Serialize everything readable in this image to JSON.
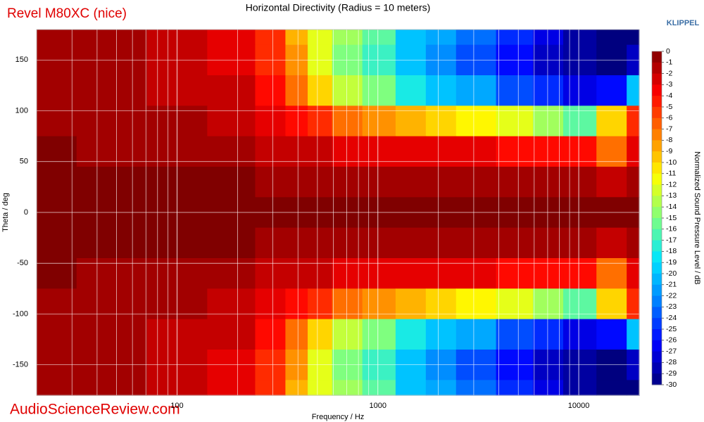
{
  "chart_data": {
    "type": "heatmap",
    "brand": "Revel M80XC (nice)",
    "title": "Horizontal Directivity (Radius = 10 meters)",
    "logo": "KLIPPEL",
    "watermark": "AudioScienceReview.com",
    "x_label": "Frequency / Hz",
    "y_label": "Theta / deg",
    "x": [
      20,
      50,
      100,
      200,
      300,
      400,
      500,
      700,
      1000,
      1500,
      2000,
      3000,
      5000,
      7000,
      10000,
      15000,
      20000
    ],
    "y": [
      180,
      150,
      120,
      90,
      60,
      30,
      0,
      -30,
      -60,
      -90,
      -120,
      -150,
      -180
    ],
    "z": [
      [
        -1,
        -1,
        -2,
        -3,
        -5,
        -9,
        -12,
        -14,
        -16,
        -20,
        -21,
        -23,
        -25,
        -27,
        -29,
        -30,
        -30
      ],
      [
        -1,
        -1,
        -2,
        -3,
        -5,
        -8,
        -12,
        -15,
        -17,
        -20,
        -22,
        -24,
        -26,
        -28,
        -29,
        -30,
        -28
      ],
      [
        -1,
        -1,
        -2,
        -2,
        -4,
        -7,
        -10,
        -13,
        -15,
        -18,
        -20,
        -21,
        -24,
        -25,
        -27,
        -26,
        -20
      ],
      [
        -1,
        -1,
        -1,
        -2,
        -3,
        -4,
        -5,
        -7,
        -8,
        -9,
        -10,
        -11,
        -12,
        -14,
        -16,
        -10,
        -5
      ],
      [
        0,
        -1,
        -1,
        -1,
        -2,
        -2,
        -2,
        -3,
        -3,
        -3,
        -3,
        -3,
        -4,
        -4,
        -4,
        -7,
        -3
      ],
      [
        0,
        0,
        0,
        0,
        -1,
        -1,
        -1,
        -1,
        -1,
        -1,
        -1,
        -1,
        -1,
        -1,
        -1,
        -2,
        -1
      ],
      [
        0,
        0,
        0,
        0,
        0,
        0,
        0,
        0,
        0,
        0,
        0,
        0,
        0,
        0,
        0,
        0,
        0
      ],
      [
        0,
        0,
        0,
        0,
        -1,
        -1,
        -1,
        -1,
        -1,
        -1,
        -1,
        -1,
        -1,
        -1,
        -1,
        -2,
        -1
      ],
      [
        0,
        -1,
        -1,
        -1,
        -2,
        -2,
        -2,
        -3,
        -3,
        -3,
        -3,
        -3,
        -4,
        -4,
        -4,
        -7,
        -3
      ],
      [
        -1,
        -1,
        -1,
        -2,
        -3,
        -4,
        -5,
        -7,
        -8,
        -9,
        -10,
        -11,
        -12,
        -14,
        -16,
        -10,
        -5
      ],
      [
        -1,
        -1,
        -2,
        -2,
        -4,
        -7,
        -10,
        -13,
        -15,
        -18,
        -20,
        -21,
        -24,
        -25,
        -27,
        -26,
        -20
      ],
      [
        -1,
        -1,
        -2,
        -3,
        -5,
        -8,
        -12,
        -15,
        -17,
        -20,
        -22,
        -24,
        -26,
        -28,
        -29,
        -30,
        -28
      ],
      [
        -1,
        -1,
        -2,
        -3,
        -5,
        -9,
        -12,
        -14,
        -16,
        -20,
        -21,
        -23,
        -25,
        -27,
        -29,
        -30,
        -30
      ]
    ],
    "xlim": [
      20,
      20000
    ],
    "log_x": true,
    "minor_grid": true,
    "xticks": [
      100,
      1000,
      10000
    ],
    "ylim": [
      -180,
      180
    ],
    "yticks": [
      -150,
      -100,
      -50,
      0,
      50,
      100,
      150
    ],
    "grid": true,
    "colorbar": {
      "label": "Normalized Sound Pressure Level / dB",
      "lim": [
        -30,
        0
      ],
      "ticks": [
        0,
        -1,
        -2,
        -3,
        -4,
        -5,
        -6,
        -7,
        -8,
        -9,
        -10,
        -11,
        -12,
        -13,
        -14,
        -15,
        -16,
        -17,
        -18,
        -19,
        -20,
        -21,
        -22,
        -23,
        -24,
        -25,
        -26,
        -27,
        -28,
        -29,
        -30
      ],
      "colormap": [
        "#00007f",
        "#0000ff",
        "#0080ff",
        "#00e5ff",
        "#7fff7f",
        "#ffff00",
        "#ff8000",
        "#ff0000",
        "#800000"
      ]
    }
  }
}
